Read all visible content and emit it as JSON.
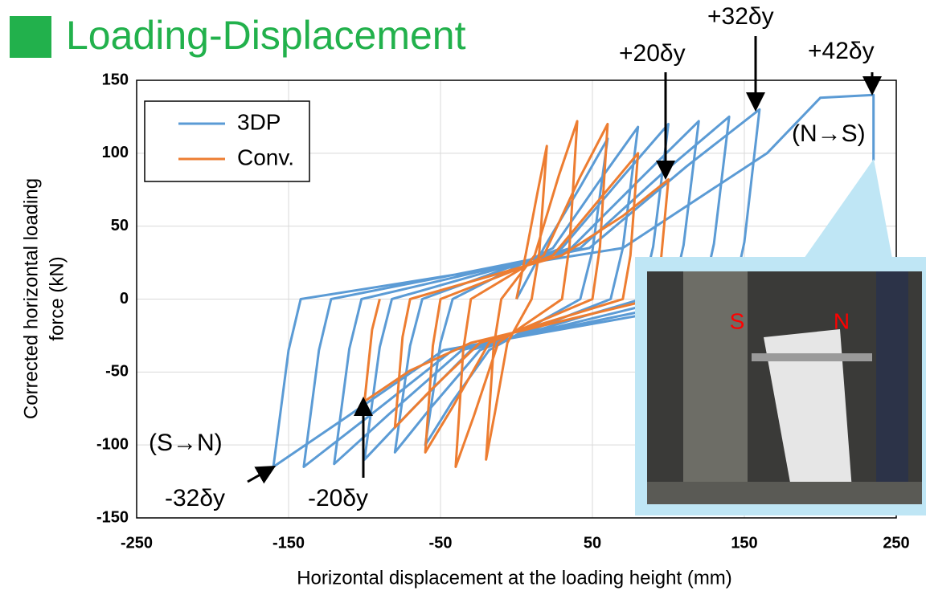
{
  "chart_data": {
    "type": "line",
    "title": "Loading-Displacement",
    "x_label": "Horizontal displacement at the loading height (mm)",
    "y_label": [
      "Corrected horizontal loading",
      "force (kN)"
    ],
    "xlim": [
      -250,
      250
    ],
    "ylim": [
      -150,
      150
    ],
    "xticks": [
      -250,
      -150,
      -50,
      50,
      150,
      250
    ],
    "yticks": [
      -150,
      -100,
      -50,
      0,
      50,
      100,
      150
    ],
    "grid": true,
    "legend": "upper left",
    "series": [
      {
        "name": "3DP",
        "color": "#5b9bd5",
        "x": [
          0,
          18,
          42,
          60,
          50,
          42,
          -18,
          -42,
          -60,
          -50,
          -42,
          24,
          56,
          80,
          70,
          62,
          -24,
          -56,
          -80,
          -70,
          -62,
          30,
          70,
          100,
          90,
          82,
          -30,
          -70,
          -100,
          -90,
          -82,
          36,
          84,
          120,
          110,
          102,
          -36,
          -84,
          -120,
          -110,
          -102,
          42,
          98,
          140,
          130,
          122,
          -42,
          -98,
          -140,
          -130,
          -122,
          48,
          112,
          160,
          150,
          142,
          -48,
          -112,
          -160,
          -150,
          -142,
          70,
          165,
          200,
          235,
          235
        ],
        "values": [
          0,
          35,
          77,
          110,
          33,
          0,
          -35,
          -70,
          -100,
          -30,
          0,
          35,
          83,
          118,
          35,
          0,
          -35,
          -74,
          -105,
          -32,
          0,
          35,
          84,
          120,
          36,
          0,
          -35,
          -77,
          -110,
          -33,
          0,
          35,
          85,
          122,
          37,
          0,
          -35,
          -79,
          -113,
          -34,
          0,
          35,
          88,
          125,
          38,
          0,
          -35,
          -81,
          -115,
          -35,
          0,
          35,
          91,
          130,
          39,
          0,
          -35,
          -81,
          -115,
          -35,
          0,
          35,
          100,
          138,
          140,
          95
        ]
      },
      {
        "name": "Conv.",
        "color": "#ed7d31",
        "x": [
          0,
          6,
          14,
          20,
          15,
          10,
          -6,
          -14,
          -20,
          -15,
          -10,
          12,
          28,
          40,
          35,
          30,
          -12,
          -28,
          -40,
          -35,
          -30,
          18,
          42,
          60,
          55,
          50,
          -18,
          -42,
          -60,
          -55,
          -50,
          24,
          56,
          80,
          75,
          70,
          -24,
          -56,
          -80,
          -75,
          -70,
          30,
          70,
          100,
          95,
          90,
          -30,
          -70,
          -100,
          -95,
          -90
        ],
        "values": [
          0,
          30,
          74,
          105,
          32,
          0,
          -30,
          -77,
          -110,
          -33,
          0,
          30,
          85,
          122,
          37,
          0,
          -30,
          -80,
          -115,
          -35,
          0,
          30,
          84,
          120,
          36,
          0,
          -30,
          -74,
          -105,
          -32,
          0,
          30,
          70,
          100,
          30,
          0,
          -30,
          -62,
          -88,
          -26,
          0,
          30,
          57,
          82,
          25,
          0,
          -30,
          -49,
          -70,
          -21,
          0
        ]
      }
    ],
    "annotations": [
      "+20δy",
      "+32δy",
      "+42δy",
      "(N→S)",
      "(S→N)",
      "-32δy",
      "-20δy"
    ],
    "photo_labels": [
      "S",
      "N"
    ]
  }
}
